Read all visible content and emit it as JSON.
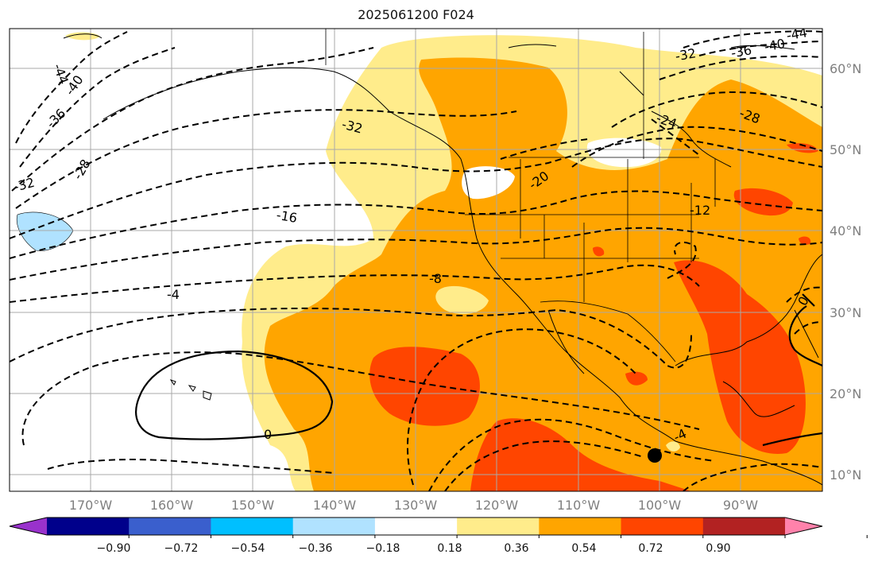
{
  "title": "2025061200 F024",
  "lat_labels": [
    "60°N",
    "50°N",
    "40°N",
    "30°N",
    "20°N",
    "10°N"
  ],
  "lon_labels": [
    "170°W",
    "160°W",
    "150°W",
    "140°W",
    "130°W",
    "120°W",
    "110°W",
    "100°W",
    "90°W"
  ],
  "colorbar": {
    "labels": [
      "−0.90",
      "−0.72",
      "−0.54",
      "−0.36",
      "−0.18",
      "0.18",
      "0.36",
      "0.54",
      "0.72",
      "0.90"
    ],
    "colors": [
      "#9932cc",
      "#00008b",
      "#3a5fcd",
      "#00bfff",
      "#b0e2ff",
      "#ffffff",
      "#ffec8b",
      "#ffa500",
      "#ff4500",
      "#b22222",
      "#ff82ab"
    ]
  },
  "contour_labels": [
    "-44",
    "-40",
    "-36",
    "-32",
    "-28",
    "-32",
    "-32",
    "-36",
    "-40",
    "-44",
    "-24",
    "-28",
    "-20",
    "-16",
    "-12",
    "-8",
    "-4",
    "-4",
    "0",
    "0"
  ],
  "marker": "black-dot"
}
